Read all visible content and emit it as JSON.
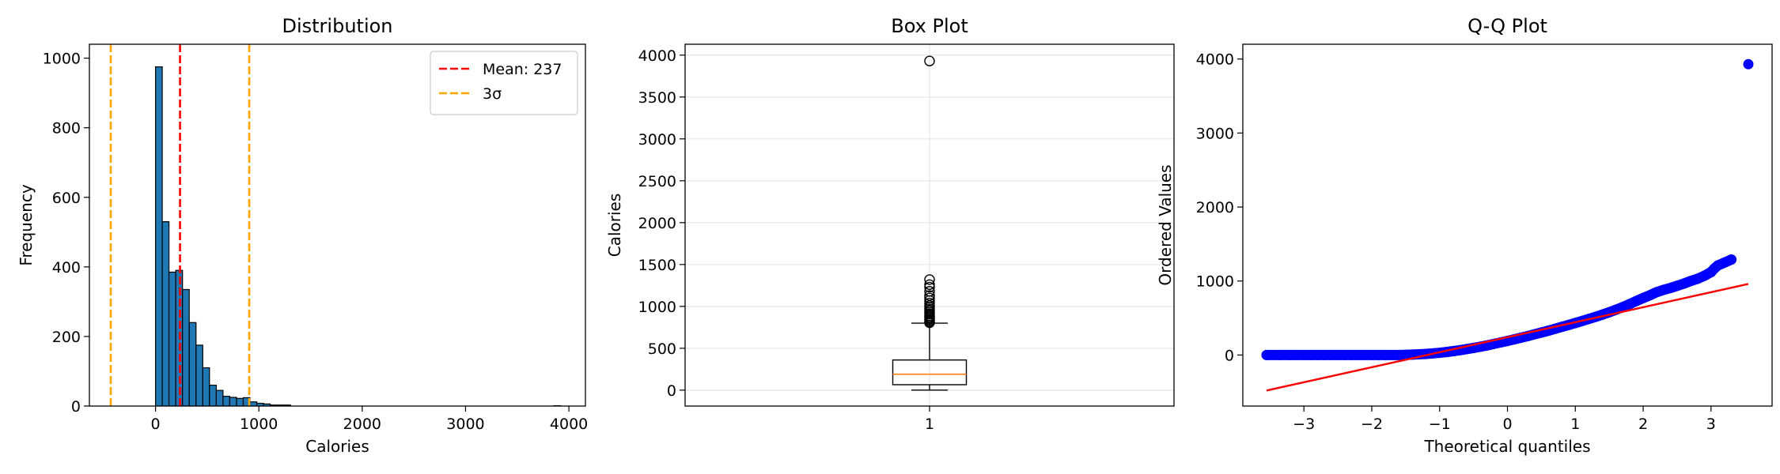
{
  "chart_data": [
    {
      "type": "histogram",
      "title": "Distribution",
      "xlabel": "Calories",
      "ylabel": "Frequency",
      "xlim": [
        -640,
        4160
      ],
      "ylim": [
        0,
        1040
      ],
      "xticks": [
        0,
        1000,
        2000,
        3000,
        4000
      ],
      "yticks": [
        0,
        200,
        400,
        600,
        800,
        1000
      ],
      "grid": false,
      "bar_color": "#1f77b4",
      "bins": [
        {
          "x0": 0,
          "x1": 65,
          "count": 975
        },
        {
          "x0": 65,
          "x1": 130,
          "count": 530
        },
        {
          "x0": 130,
          "x1": 196,
          "count": 385
        },
        {
          "x0": 196,
          "x1": 261,
          "count": 390
        },
        {
          "x0": 261,
          "x1": 326,
          "count": 335
        },
        {
          "x0": 326,
          "x1": 392,
          "count": 240
        },
        {
          "x0": 392,
          "x1": 457,
          "count": 175
        },
        {
          "x0": 457,
          "x1": 522,
          "count": 110
        },
        {
          "x0": 522,
          "x1": 588,
          "count": 60
        },
        {
          "x0": 588,
          "x1": 653,
          "count": 45
        },
        {
          "x0": 653,
          "x1": 718,
          "count": 28
        },
        {
          "x0": 718,
          "x1": 784,
          "count": 25
        },
        {
          "x0": 784,
          "x1": 849,
          "count": 22
        },
        {
          "x0": 849,
          "x1": 914,
          "count": 24
        },
        {
          "x0": 914,
          "x1": 980,
          "count": 12
        },
        {
          "x0": 980,
          "x1": 1045,
          "count": 8
        },
        {
          "x0": 1045,
          "x1": 1110,
          "count": 6
        },
        {
          "x0": 1110,
          "x1": 1176,
          "count": 3
        },
        {
          "x0": 1176,
          "x1": 1241,
          "count": 3
        },
        {
          "x0": 1241,
          "x1": 1306,
          "count": 3
        },
        {
          "x0": 3855,
          "x1": 3920,
          "count": 1
        }
      ],
      "vlines": [
        {
          "x": 237,
          "color": "#ff0000",
          "style": "dashed"
        },
        {
          "x": -433,
          "color": "#ffa500",
          "style": "dashed"
        },
        {
          "x": 907,
          "color": "#ffa500",
          "style": "dashed"
        }
      ],
      "legend": {
        "placement": "top-right",
        "entries": [
          {
            "label": "Mean: 237",
            "color": "#ff0000"
          },
          {
            "label": "3σ",
            "color": "#ffa500"
          }
        ]
      }
    },
    {
      "type": "box",
      "title": "Box Plot",
      "xlabel": "",
      "ylabel": "Calories",
      "categories": [
        "1"
      ],
      "ylim": [
        -190,
        4130
      ],
      "yticks": [
        0,
        500,
        1000,
        1500,
        2000,
        2500,
        3000,
        3500,
        4000
      ],
      "grid": true,
      "box": {
        "min": 0,
        "q1": 65,
        "median": 190,
        "q3": 360,
        "max": 800
      },
      "median_color": "#ff7f0e",
      "outliers": [
        3930,
        1320,
        1260,
        1230,
        1180,
        1130,
        1100,
        1070,
        1040,
        1010,
        990,
        970,
        950,
        930,
        910,
        890,
        875,
        860,
        845,
        830,
        815,
        805
      ]
    },
    {
      "type": "scatter",
      "title": "Q-Q Plot",
      "xlabel": "Theoretical quantiles",
      "ylabel": "Ordered Values",
      "xlim": [
        -3.9,
        3.9
      ],
      "ylim": [
        -690,
        4200
      ],
      "xticks": [
        -3,
        -2,
        -1,
        0,
        1,
        2,
        3
      ],
      "yticks": [
        0,
        1000,
        2000,
        3000,
        4000
      ],
      "grid": false,
      "point_color": "#0000ff",
      "line_color": "#ff0000",
      "fit_line": {
        "x": [
          -3.55,
          3.55
        ],
        "y": [
          -480,
          960
        ]
      },
      "points": [
        [
          -3.55,
          0
        ],
        [
          -3.35,
          0
        ],
        [
          -3.2,
          0
        ],
        [
          -3.1,
          0
        ],
        [
          -3.0,
          0
        ],
        [
          -2.9,
          0
        ],
        [
          -2.8,
          0
        ],
        [
          -2.7,
          0
        ],
        [
          -2.6,
          0
        ],
        [
          -2.5,
          0
        ],
        [
          -2.4,
          0
        ],
        [
          -2.3,
          0
        ],
        [
          -2.2,
          0
        ],
        [
          -2.1,
          0
        ],
        [
          -2.0,
          0
        ],
        [
          -1.9,
          0
        ],
        [
          -1.8,
          0
        ],
        [
          -1.7,
          0
        ],
        [
          -1.6,
          0
        ],
        [
          -1.5,
          2
        ],
        [
          -1.4,
          5
        ],
        [
          -1.3,
          10
        ],
        [
          -1.2,
          15
        ],
        [
          -1.1,
          22
        ],
        [
          -1.0,
          30
        ],
        [
          -0.9,
          40
        ],
        [
          -0.8,
          52
        ],
        [
          -0.7,
          65
        ],
        [
          -0.6,
          80
        ],
        [
          -0.5,
          95
        ],
        [
          -0.4,
          112
        ],
        [
          -0.3,
          130
        ],
        [
          -0.2,
          150
        ],
        [
          -0.1,
          170
        ],
        [
          0.0,
          190
        ],
        [
          0.1,
          212
        ],
        [
          0.2,
          234
        ],
        [
          0.3,
          256
        ],
        [
          0.4,
          280
        ],
        [
          0.5,
          304
        ],
        [
          0.6,
          328
        ],
        [
          0.7,
          354
        ],
        [
          0.8,
          380
        ],
        [
          0.9,
          406
        ],
        [
          1.0,
          432
        ],
        [
          1.1,
          460
        ],
        [
          1.2,
          488
        ],
        [
          1.3,
          516
        ],
        [
          1.4,
          546
        ],
        [
          1.5,
          578
        ],
        [
          1.6,
          612
        ],
        [
          1.7,
          648
        ],
        [
          1.8,
          688
        ],
        [
          1.9,
          730
        ],
        [
          2.0,
          770
        ],
        [
          2.1,
          808
        ],
        [
          2.2,
          850
        ],
        [
          2.3,
          880
        ],
        [
          2.4,
          905
        ],
        [
          2.5,
          935
        ],
        [
          2.6,
          965
        ],
        [
          2.7,
          1000
        ],
        [
          2.8,
          1030
        ],
        [
          2.9,
          1070
        ],
        [
          3.0,
          1120
        ],
        [
          3.05,
          1170
        ],
        [
          3.1,
          1210
        ],
        [
          3.2,
          1250
        ],
        [
          3.3,
          1290
        ],
        [
          3.55,
          3930
        ]
      ]
    }
  ]
}
